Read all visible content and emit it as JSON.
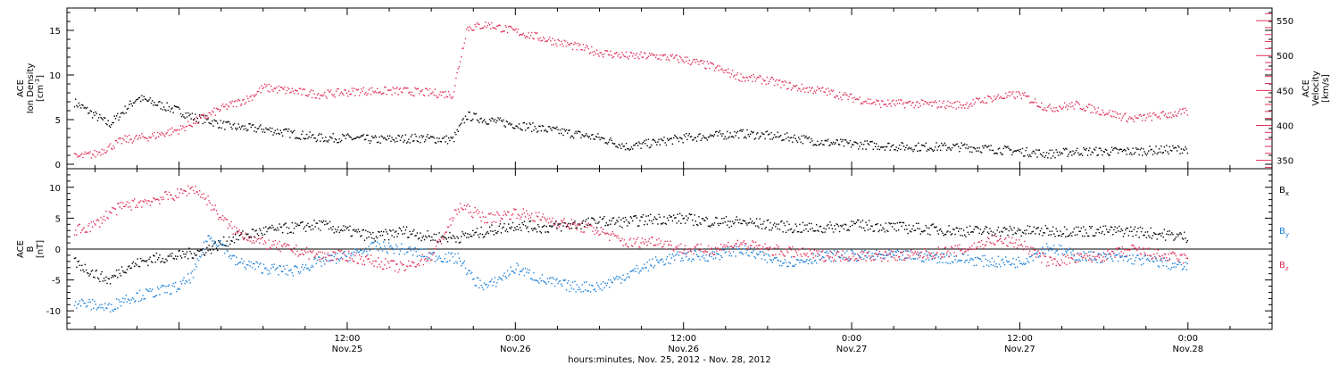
{
  "chart_data": [
    {
      "type": "scatter",
      "panel": "top",
      "left_axis": {
        "label_lines": [
          "ACE",
          "Ion Density"
        ],
        "unit": "[cm",
        "unit_sup": "-3",
        "unit_close": "]",
        "ylim": [
          -0.5,
          17.5
        ],
        "ticks": [
          0,
          5,
          10,
          15
        ],
        "color": "#000000"
      },
      "right_axis": {
        "label_lines": [
          "ACE",
          "Velocity"
        ],
        "unit": "[km/s]",
        "ylim": [
          338,
          568
        ],
        "ticks": [
          350,
          400,
          450,
          500,
          550
        ],
        "color": "#e0305a"
      },
      "series": [
        {
          "axis": "left",
          "color": "#000000",
          "anchors": [
            [
              -7.5,
              7
            ],
            [
              -6,
              5.5
            ],
            [
              -5,
              4.5
            ],
            [
              -4,
              6
            ],
            [
              -3,
              7.5
            ],
            [
              -2,
              7
            ],
            [
              -1,
              6.5
            ],
            [
              0,
              6
            ],
            [
              1,
              5.3
            ],
            [
              2,
              5
            ],
            [
              3,
              4.5
            ],
            [
              4,
              4.2
            ],
            [
              6,
              4
            ],
            [
              8,
              3.5
            ],
            [
              10,
              3
            ],
            [
              12,
              3
            ],
            [
              14,
              2.8
            ],
            [
              17,
              3
            ],
            [
              19.5,
              2.8
            ],
            [
              20.5,
              5.5
            ],
            [
              22,
              5
            ],
            [
              24,
              4.5
            ],
            [
              26,
              4
            ],
            [
              28,
              3.5
            ],
            [
              30,
              3
            ],
            [
              32,
              2
            ],
            [
              34,
              2.5
            ],
            [
              36,
              3
            ],
            [
              40,
              3.5
            ],
            [
              44,
              3
            ],
            [
              46,
              2.5
            ],
            [
              48,
              2.3
            ],
            [
              52,
              2
            ],
            [
              56,
              2
            ],
            [
              60,
              1.5
            ],
            [
              62,
              1.2
            ],
            [
              64,
              1.5
            ],
            [
              68,
              1.5
            ],
            [
              72,
              1.8
            ]
          ]
        },
        {
          "axis": "right",
          "color": "#e0305a",
          "anchors": [
            [
              -7.5,
              355
            ],
            [
              -6,
              360
            ],
            [
              -5,
              370
            ],
            [
              -4,
              380
            ],
            [
              -2,
              385
            ],
            [
              0,
              395
            ],
            [
              2,
              415
            ],
            [
              3,
              425
            ],
            [
              5,
              440
            ],
            [
              6,
              455
            ],
            [
              8,
              450
            ],
            [
              10,
              445
            ],
            [
              13,
              450
            ],
            [
              16,
              450
            ],
            [
              19.5,
              445
            ],
            [
              20.5,
              540
            ],
            [
              22,
              545
            ],
            [
              24,
              535
            ],
            [
              26,
              525
            ],
            [
              28,
              515
            ],
            [
              30,
              505
            ],
            [
              32,
              500
            ],
            [
              34,
              500
            ],
            [
              36,
              495
            ],
            [
              38,
              485
            ],
            [
              40,
              470
            ],
            [
              42,
              465
            ],
            [
              44,
              455
            ],
            [
              46,
              450
            ],
            [
              48,
              440
            ],
            [
              50,
              432
            ],
            [
              52,
              432
            ],
            [
              56,
              430
            ],
            [
              58,
              440
            ],
            [
              60,
              445
            ],
            [
              62,
              425
            ],
            [
              64,
              430
            ],
            [
              66,
              420
            ],
            [
              68,
              410
            ],
            [
              70,
              415
            ],
            [
              72,
              420
            ]
          ]
        }
      ]
    },
    {
      "type": "scatter",
      "panel": "bottom",
      "left_axis": {
        "label_lines": [
          "ACE",
          "B"
        ],
        "unit": "[nT]",
        "ylim": [
          -13,
          13
        ],
        "ticks": [
          -10,
          -5,
          0,
          5,
          10
        ],
        "color": "#000000"
      },
      "zero_line": true,
      "series": [
        {
          "name": "B",
          "sub": "x",
          "color": "#000000",
          "anchors": [
            [
              -7.5,
              -2
            ],
            [
              -6,
              -4
            ],
            [
              -5,
              -5
            ],
            [
              -4,
              -3
            ],
            [
              -2,
              -1.5
            ],
            [
              0,
              -1
            ],
            [
              2,
              0
            ],
            [
              3,
              1
            ],
            [
              4,
              2
            ],
            [
              6,
              3
            ],
            [
              8,
              3.5
            ],
            [
              10,
              4
            ],
            [
              12,
              3
            ],
            [
              14,
              2
            ],
            [
              16,
              3
            ],
            [
              18,
              2
            ],
            [
              20,
              2
            ],
            [
              22,
              3
            ],
            [
              24,
              4
            ],
            [
              26,
              3.5
            ],
            [
              28,
              4
            ],
            [
              30,
              4.5
            ],
            [
              32,
              4.5
            ],
            [
              34,
              5
            ],
            [
              36,
              5
            ],
            [
              38,
              4.5
            ],
            [
              40,
              4.5
            ],
            [
              42,
              4
            ],
            [
              44,
              3.5
            ],
            [
              46,
              3.5
            ],
            [
              48,
              4
            ],
            [
              52,
              3.5
            ],
            [
              56,
              3
            ],
            [
              60,
              3
            ],
            [
              64,
              3
            ],
            [
              68,
              3
            ],
            [
              70,
              2.5
            ],
            [
              72,
              2
            ]
          ]
        },
        {
          "name": "B",
          "sub": "y",
          "color": "#1a7fd8",
          "anchors": [
            [
              -7.5,
              -8.5
            ],
            [
              -6,
              -9
            ],
            [
              -5,
              -9.5
            ],
            [
              -4,
              -8
            ],
            [
              -2,
              -7
            ],
            [
              0,
              -6
            ],
            [
              1,
              -4
            ],
            [
              2,
              2
            ],
            [
              3,
              1
            ],
            [
              4,
              -2
            ],
            [
              6,
              -3
            ],
            [
              8,
              -3.5
            ],
            [
              10,
              -2
            ],
            [
              12,
              -1
            ],
            [
              14,
              0.5
            ],
            [
              16,
              0
            ],
            [
              18,
              -1
            ],
            [
              20,
              -1.5
            ],
            [
              21,
              -5
            ],
            [
              22,
              -6
            ],
            [
              24,
              -3
            ],
            [
              26,
              -5
            ],
            [
              28,
              -6
            ],
            [
              30,
              -6
            ],
            [
              32,
              -4
            ],
            [
              34,
              -2
            ],
            [
              36,
              -1
            ],
            [
              38,
              -1
            ],
            [
              40,
              0
            ],
            [
              42,
              -1.5
            ],
            [
              44,
              -2
            ],
            [
              46,
              -1
            ],
            [
              48,
              -1
            ],
            [
              52,
              -1
            ],
            [
              56,
              -1.5
            ],
            [
              58,
              -2
            ],
            [
              60,
              -2
            ],
            [
              62,
              0.5
            ],
            [
              64,
              -1
            ],
            [
              68,
              -1.5
            ],
            [
              70,
              -2
            ],
            [
              72,
              -3
            ]
          ]
        },
        {
          "name": "B",
          "sub": "z",
          "color": "#e0305a",
          "anchors": [
            [
              -7.5,
              3
            ],
            [
              -6,
              4
            ],
            [
              -5,
              6
            ],
            [
              -4,
              7
            ],
            [
              -2,
              8
            ],
            [
              0,
              9
            ],
            [
              1,
              10
            ],
            [
              2,
              8
            ],
            [
              3,
              5
            ],
            [
              4,
              3
            ],
            [
              6,
              1
            ],
            [
              8,
              0
            ],
            [
              10,
              -1
            ],
            [
              12,
              -1
            ],
            [
              14,
              -2
            ],
            [
              16,
              -3
            ],
            [
              18,
              -1
            ],
            [
              20,
              7
            ],
            [
              22,
              5
            ],
            [
              24,
              6
            ],
            [
              26,
              5
            ],
            [
              28,
              4
            ],
            [
              30,
              3
            ],
            [
              32,
              1
            ],
            [
              34,
              1.5
            ],
            [
              36,
              0
            ],
            [
              38,
              0
            ],
            [
              40,
              1
            ],
            [
              42,
              0
            ],
            [
              44,
              -0.5
            ],
            [
              46,
              -1
            ],
            [
              48,
              -1
            ],
            [
              52,
              -1
            ],
            [
              56,
              0
            ],
            [
              58,
              1.5
            ],
            [
              60,
              1
            ],
            [
              62,
              -2
            ],
            [
              64,
              -1.5
            ],
            [
              66,
              -1
            ],
            [
              68,
              0
            ],
            [
              70,
              -1
            ],
            [
              72,
              -1.5
            ]
          ]
        }
      ]
    }
  ],
  "x_axis": {
    "xlim": [
      -8,
      78
    ],
    "ticks": [
      {
        "x": 12,
        "time": "12:00",
        "date": "Nov.25"
      },
      {
        "x": 24,
        "time": "0:00",
        "date": "Nov.26"
      },
      {
        "x": 36,
        "time": "12:00",
        "date": "Nov.26"
      },
      {
        "x": 48,
        "time": "0:00",
        "date": "Nov.27"
      },
      {
        "x": 60,
        "time": "12:00",
        "date": "Nov.27"
      },
      {
        "x": 72,
        "time": "0:00",
        "date": "Nov.28"
      }
    ],
    "xlabel": "hours:minutes, Nov. 25, 2012 - Nov. 28, 2012"
  }
}
